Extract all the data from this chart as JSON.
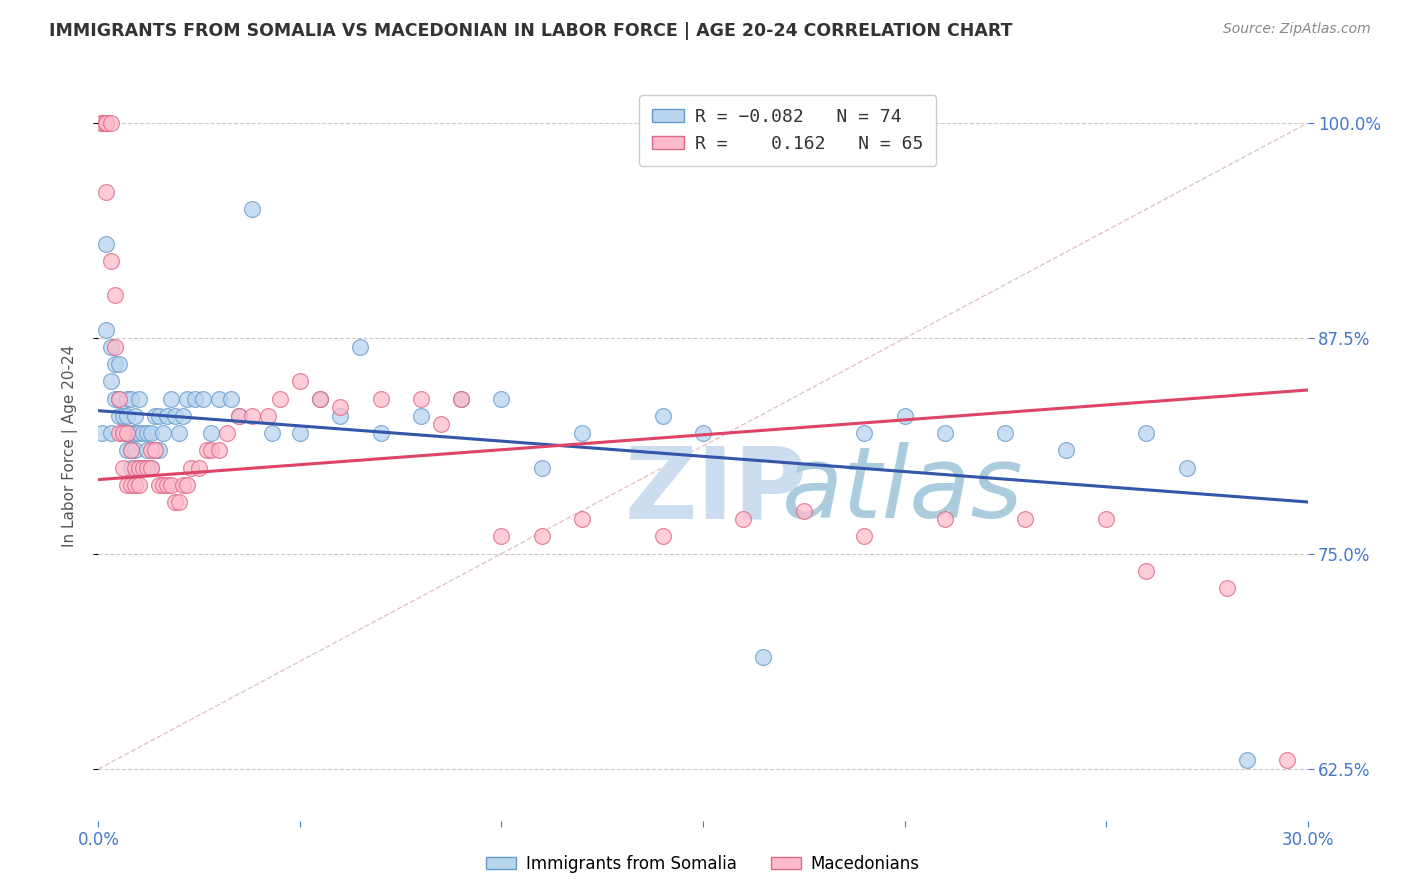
{
  "title": "IMMIGRANTS FROM SOMALIA VS MACEDONIAN IN LABOR FORCE | AGE 20-24 CORRELATION CHART",
  "source": "Source: ZipAtlas.com",
  "ylabel": "In Labor Force | Age 20-24",
  "x_min": 0.0,
  "x_max": 0.3,
  "y_min": 0.595,
  "y_max": 1.03,
  "x_ticks": [
    0.0,
    0.05,
    0.1,
    0.15,
    0.2,
    0.25,
    0.3
  ],
  "x_tick_labels": [
    "0.0%",
    "",
    "",
    "",
    "",
    "",
    "30.0%"
  ],
  "y_ticks": [
    0.625,
    0.75,
    0.875,
    1.0
  ],
  "y_tick_labels": [
    "62.5%",
    "75.0%",
    "87.5%",
    "100.0%"
  ],
  "somalia_color": "#b8d4ee",
  "somalia_edge_color": "#6699cc",
  "macedonian_color": "#ffbbcc",
  "macedonian_edge_color": "#dd6688",
  "trend_somalia_color": "#3355aa",
  "trend_macedonian_color": "#dd4466",
  "ref_line_color": "#ddaaaa",
  "watermark_zip_color": "#ccddf0",
  "watermark_atlas_color": "#aaccdd",
  "background_color": "#ffffff",
  "grid_color": "#cccccc",
  "tick_color": "#4477cc",
  "somalia_x": [
    0.001,
    0.002,
    0.002,
    0.003,
    0.003,
    0.003,
    0.004,
    0.004,
    0.005,
    0.005,
    0.005,
    0.006,
    0.006,
    0.007,
    0.007,
    0.007,
    0.007,
    0.008,
    0.008,
    0.008,
    0.008,
    0.009,
    0.009,
    0.009,
    0.009,
    0.01,
    0.01,
    0.01,
    0.011,
    0.011,
    0.012,
    0.012,
    0.013,
    0.013,
    0.014,
    0.014,
    0.015,
    0.015,
    0.016,
    0.017,
    0.018,
    0.019,
    0.02,
    0.021,
    0.022,
    0.024,
    0.026,
    0.028,
    0.03,
    0.033,
    0.035,
    0.038,
    0.043,
    0.05,
    0.055,
    0.06,
    0.065,
    0.07,
    0.08,
    0.09,
    0.1,
    0.11,
    0.12,
    0.14,
    0.15,
    0.165,
    0.19,
    0.2,
    0.21,
    0.225,
    0.24,
    0.26,
    0.27,
    0.285
  ],
  "somalia_y": [
    0.82,
    0.93,
    0.88,
    0.85,
    0.87,
    0.82,
    0.84,
    0.86,
    0.83,
    0.86,
    0.84,
    0.82,
    0.83,
    0.81,
    0.82,
    0.84,
    0.83,
    0.8,
    0.82,
    0.84,
    0.81,
    0.79,
    0.81,
    0.82,
    0.83,
    0.8,
    0.82,
    0.84,
    0.8,
    0.82,
    0.81,
    0.82,
    0.8,
    0.82,
    0.81,
    0.83,
    0.81,
    0.83,
    0.82,
    0.83,
    0.84,
    0.83,
    0.82,
    0.83,
    0.84,
    0.84,
    0.84,
    0.82,
    0.84,
    0.84,
    0.83,
    0.95,
    0.82,
    0.82,
    0.84,
    0.83,
    0.87,
    0.82,
    0.83,
    0.84,
    0.84,
    0.8,
    0.82,
    0.83,
    0.82,
    0.69,
    0.82,
    0.83,
    0.82,
    0.82,
    0.81,
    0.82,
    0.8,
    0.63
  ],
  "macedonian_x": [
    0.001,
    0.001,
    0.001,
    0.002,
    0.002,
    0.002,
    0.003,
    0.003,
    0.004,
    0.004,
    0.005,
    0.005,
    0.006,
    0.006,
    0.007,
    0.007,
    0.008,
    0.008,
    0.009,
    0.009,
    0.01,
    0.01,
    0.011,
    0.012,
    0.013,
    0.013,
    0.014,
    0.015,
    0.016,
    0.017,
    0.018,
    0.019,
    0.02,
    0.021,
    0.022,
    0.023,
    0.025,
    0.027,
    0.028,
    0.03,
    0.032,
    0.035,
    0.038,
    0.042,
    0.045,
    0.05,
    0.055,
    0.06,
    0.07,
    0.08,
    0.085,
    0.09,
    0.1,
    0.11,
    0.12,
    0.14,
    0.16,
    0.175,
    0.19,
    0.21,
    0.23,
    0.25,
    0.26,
    0.28,
    0.295
  ],
  "macedonian_y": [
    1.0,
    1.0,
    1.0,
    1.0,
    1.0,
    0.96,
    0.92,
    1.0,
    0.9,
    0.87,
    0.84,
    0.82,
    0.82,
    0.8,
    0.82,
    0.79,
    0.81,
    0.79,
    0.8,
    0.79,
    0.79,
    0.8,
    0.8,
    0.8,
    0.81,
    0.8,
    0.81,
    0.79,
    0.79,
    0.79,
    0.79,
    0.78,
    0.78,
    0.79,
    0.79,
    0.8,
    0.8,
    0.81,
    0.81,
    0.81,
    0.82,
    0.83,
    0.83,
    0.83,
    0.84,
    0.85,
    0.84,
    0.835,
    0.84,
    0.84,
    0.825,
    0.84,
    0.76,
    0.76,
    0.77,
    0.76,
    0.77,
    0.775,
    0.76,
    0.77,
    0.77,
    0.77,
    0.74,
    0.73,
    0.63
  ],
  "trend_somalia_x0": 0.0,
  "trend_somalia_y0": 0.833,
  "trend_somalia_x1": 0.3,
  "trend_somalia_y1": 0.78,
  "trend_mac_x0": 0.0,
  "trend_mac_y0": 0.793,
  "trend_mac_x1": 0.3,
  "trend_mac_y1": 0.845,
  "ref_line_x0": 0.0,
  "ref_line_y0": 0.625,
  "ref_line_x1": 0.3,
  "ref_line_y1": 1.0
}
